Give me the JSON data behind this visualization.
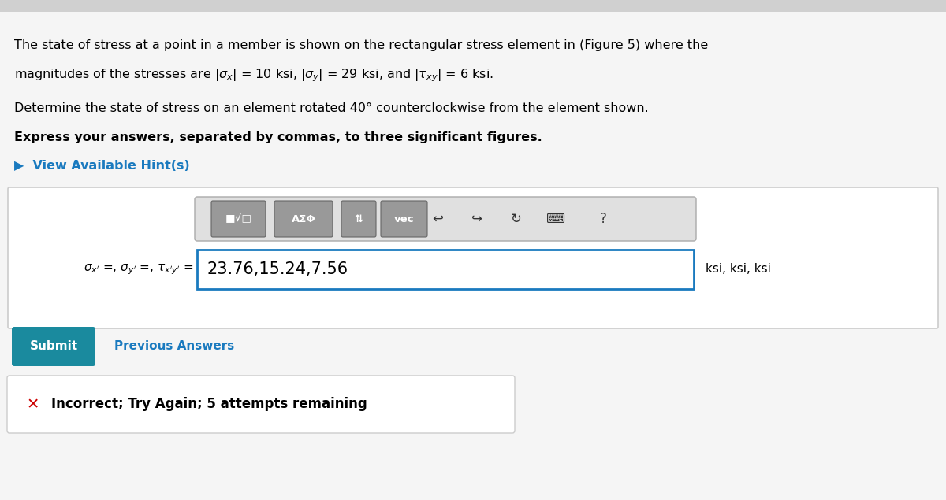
{
  "bg_color": "#f5f5f5",
  "white": "#ffffff",
  "para1_line1": "The state of stress at a point in a member is shown on the rectangular stress element in (Figure 5) where the",
  "para1_line2_plain_start": "magnitudes of the stresses are |",
  "para1_line2_plain_end": "| = 10 ksi, |",
  "para1_sigmax": "σ",
  "para1_sigmax_sub": "x",
  "para1_sigmay": "σ",
  "para1_sigmay_sub": "y",
  "para1_line2_mid": "| = 29 ksi, and |",
  "para1_tau": "τ",
  "para1_tau_sub": "xy",
  "para1_line2_end": "| = 6 ksi.",
  "para2": "Determine the state of stress on an element rotated 40° counterclockwise from the element shown.",
  "para3": "Express your answers, separated by commas, to three significant figures.",
  "hint_text": "▶  View Available Hint(s)",
  "hint_color": "#1a7abf",
  "input_value": "23.76,15.24,7.56",
  "label_text": "σ",
  "ksi_label": "ksi, ksi, ksi",
  "submit_text": "Submit",
  "submit_bg": "#1a8a9e",
  "prev_text": "Previous Answers",
  "prev_color": "#1a7abf",
  "incorrect_text": "Incorrect; Try Again; 5 attempts remaining",
  "incorrect_color": "#cc0000",
  "toolbar_bg": "#e0e0e0",
  "toolbar_buttons": [
    "■√□",
    "AΣΦ",
    "⇵",
    "vec"
  ],
  "input_border_color": "#1a7abf",
  "outer_box_color": "#cccccc"
}
